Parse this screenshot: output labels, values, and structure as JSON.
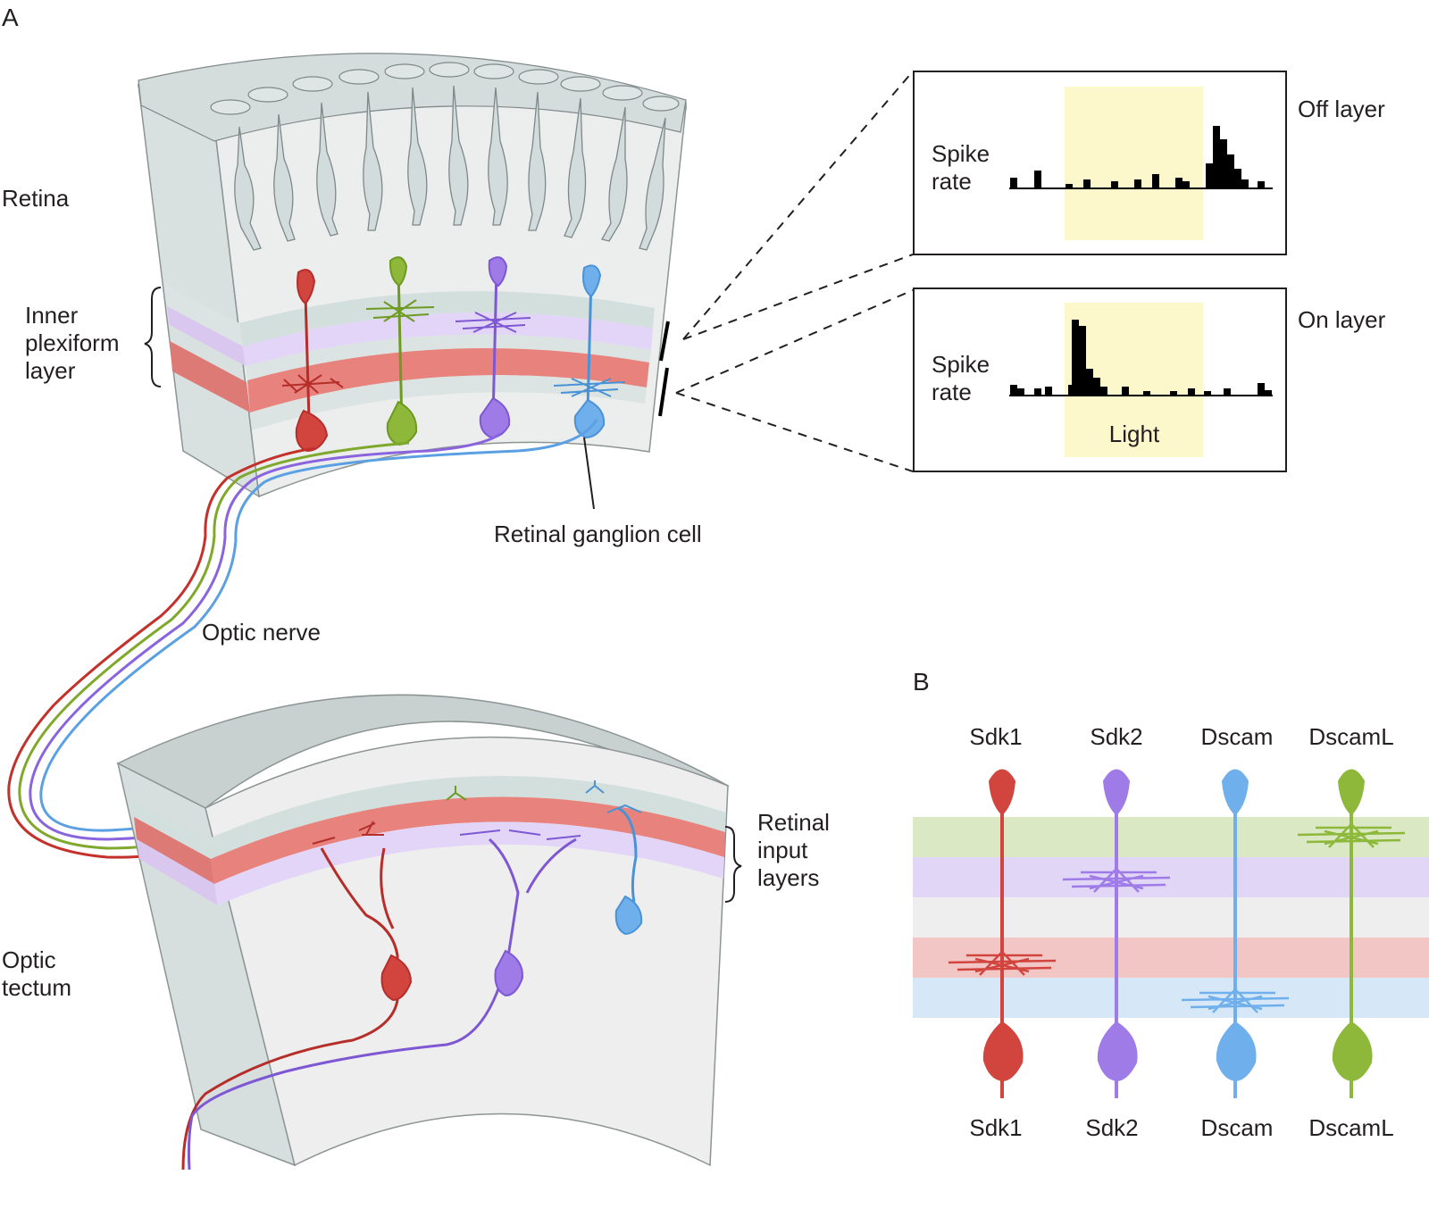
{
  "panel_a": {
    "label": "A",
    "retina": {
      "title": "Retina",
      "inner_plexiform_layer": [
        "Inner",
        "plexiform",
        "layer"
      ],
      "ganglion_cell_label": "Retinal ganglion cell"
    },
    "optic_nerve_label": "Optic nerve",
    "optic_tectum": {
      "title": [
        "Optic",
        "tectum"
      ],
      "retinal_input_layers": [
        "Retinal",
        "input",
        "layers"
      ]
    },
    "recordings": [
      {
        "layer_label": "Off layer",
        "ylabel": [
          "Spike",
          "rate"
        ],
        "stimulus_label": ""
      },
      {
        "layer_label": "On layer",
        "ylabel": [
          "Spike",
          "rate"
        ],
        "stimulus_label": "Light"
      }
    ]
  },
  "panel_b": {
    "label": "B",
    "cell_types": [
      {
        "top_label": "Sdk1",
        "bottom_label": "Sdk1",
        "color": "#d2453e"
      },
      {
        "top_label": "Sdk2",
        "bottom_label": "Sdk2",
        "color": "#9f7be8"
      },
      {
        "top_label": "Dscam",
        "bottom_label": "Dscam",
        "color": "#6fb0ec"
      },
      {
        "top_label": "DscamL",
        "bottom_label": "DscamL",
        "color": "#8db83a"
      }
    ],
    "layer_colors": [
      "#dae8c4",
      "#e2d6f7",
      "#eeeeee",
      "#f2c6c4",
      "#d6e8f8"
    ]
  },
  "colors": {
    "red": "#d2453e",
    "green": "#8db83a",
    "purple": "#9f7be8",
    "blue": "#6fb0ec",
    "light_stimulus": "#fdf7cc",
    "tissue": "#e3e8e8"
  }
}
